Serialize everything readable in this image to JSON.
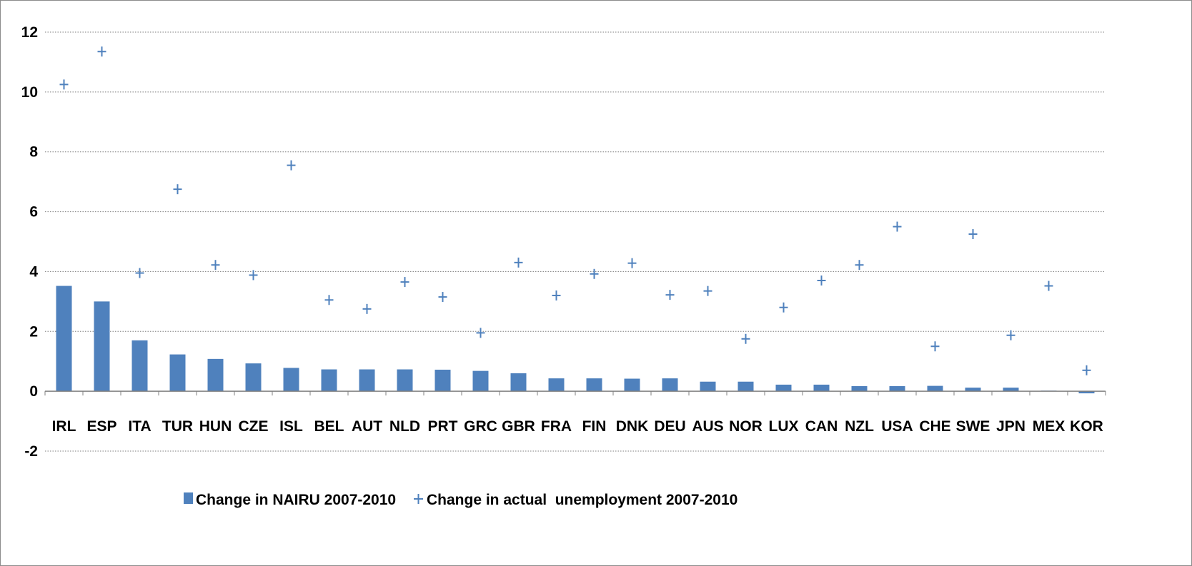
{
  "chart_data": {
    "type": "bar",
    "categories": [
      "IRL",
      "ESP",
      "ITA",
      "TUR",
      "HUN",
      "CZE",
      "ISL",
      "BEL",
      "AUT",
      "NLD",
      "PRT",
      "GRC",
      "GBR",
      "FRA",
      "FIN",
      "DNK",
      "DEU",
      "AUS",
      "NOR",
      "LUX",
      "CAN",
      "NZL",
      "USA",
      "CHE",
      "SWE",
      "JPN",
      "MEX",
      "KOR"
    ],
    "series": [
      {
        "name": "Change in NAIRU 2007-2010",
        "type": "bar",
        "color": "#4f81bd",
        "values": [
          3.52,
          3.0,
          1.7,
          1.23,
          1.08,
          0.93,
          0.78,
          0.73,
          0.73,
          0.73,
          0.72,
          0.68,
          0.6,
          0.43,
          0.43,
          0.42,
          0.43,
          0.32,
          0.32,
          0.22,
          0.22,
          0.17,
          0.17,
          0.18,
          0.12,
          0.12,
          0.02,
          -0.07
        ]
      },
      {
        "name": "Change in actual  unemployment 2007-2010",
        "type": "scatter",
        "marker": "plus",
        "color": "#4f81bd",
        "values": [
          10.25,
          11.35,
          3.95,
          6.75,
          4.22,
          3.88,
          7.55,
          3.05,
          2.75,
          3.65,
          3.15,
          1.95,
          4.3,
          3.2,
          3.92,
          4.28,
          3.22,
          3.35,
          1.75,
          2.8,
          3.7,
          4.22,
          5.5,
          1.5,
          5.25,
          1.87,
          3.52,
          0.7
        ]
      }
    ],
    "yticks": [
      "-2",
      "0",
      "2",
      "4",
      "6",
      "8",
      "10",
      "12"
    ],
    "ylim": [
      -2,
      12
    ],
    "grid": "horizontal-dotted",
    "legend": "bottom"
  }
}
